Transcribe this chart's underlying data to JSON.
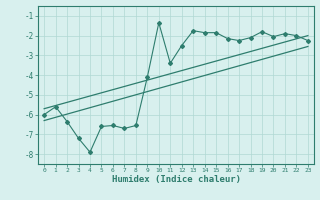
{
  "xlabel": "Humidex (Indice chaleur)",
  "ylabel": "",
  "xlim": [
    -0.5,
    23.5
  ],
  "ylim": [
    -8.5,
    -0.5
  ],
  "yticks": [
    -1,
    -2,
    -3,
    -4,
    -5,
    -6,
    -7,
    -8
  ],
  "xticks": [
    0,
    1,
    2,
    3,
    4,
    5,
    6,
    7,
    8,
    9,
    10,
    11,
    12,
    13,
    14,
    15,
    16,
    17,
    18,
    19,
    20,
    21,
    22,
    23
  ],
  "data_x": [
    0,
    1,
    2,
    3,
    4,
    5,
    6,
    7,
    8,
    9,
    10,
    11,
    12,
    13,
    14,
    15,
    16,
    17,
    18,
    19,
    20,
    21,
    22,
    23
  ],
  "data_y": [
    -6.0,
    -5.6,
    -6.35,
    -7.2,
    -7.9,
    -6.6,
    -6.55,
    -6.7,
    -6.55,
    -4.1,
    -1.35,
    -3.4,
    -2.5,
    -1.75,
    -1.85,
    -1.85,
    -2.15,
    -2.25,
    -2.1,
    -1.8,
    -2.05,
    -1.9,
    -2.0,
    -2.25
  ],
  "line1_x": [
    0,
    23
  ],
  "line1_y": [
    -5.7,
    -2.0
  ],
  "line2_x": [
    0,
    23
  ],
  "line2_y": [
    -6.3,
    -2.55
  ],
  "color": "#2e7d6e",
  "bg_color": "#d8f0ee",
  "grid_color": "#b0d8d4"
}
